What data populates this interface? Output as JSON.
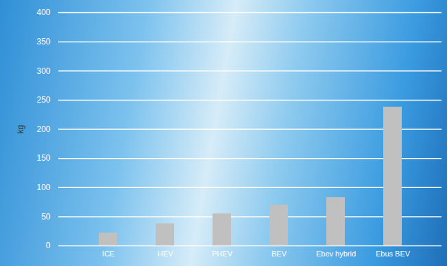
{
  "chart_data": {
    "type": "bar",
    "y_label": "kg",
    "categories": [
      "ICE",
      "HEV",
      "PHEV",
      "BEV",
      "Ebev hybrid",
      "Ebus BEV"
    ],
    "values": [
      22,
      38,
      55,
      70,
      83,
      238
    ],
    "color": "#c0c0c0",
    "ylim": [
      0,
      400
    ],
    "yticks": [
      0,
      50,
      100,
      150,
      200,
      250,
      300,
      350,
      400
    ],
    "grid": true
  }
}
